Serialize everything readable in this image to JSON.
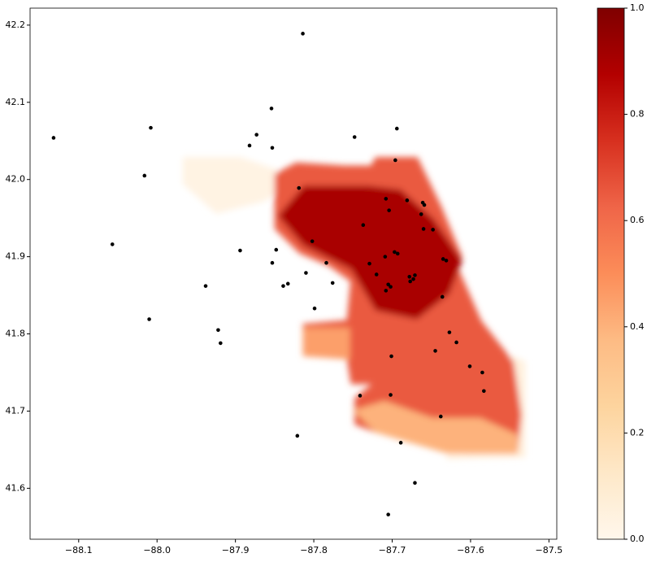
{
  "chart_data": {
    "type": "scatter",
    "xlim": [
      -88.162,
      -87.49
    ],
    "ylim": [
      41.534,
      42.222
    ],
    "xticks": [
      {
        "value": -88.1,
        "label": "−88.1"
      },
      {
        "value": -88.0,
        "label": "−88.0"
      },
      {
        "value": -87.9,
        "label": "−87.9"
      },
      {
        "value": -87.8,
        "label": "−87.8"
      },
      {
        "value": -87.7,
        "label": "−87.7"
      },
      {
        "value": -87.6,
        "label": "−87.6"
      },
      {
        "value": -87.5,
        "label": "−87.5"
      }
    ],
    "yticks": [
      41.6,
      41.7,
      41.8,
      41.9,
      {
        "value": 42.0,
        "label": "42.0"
      },
      42.1,
      42.2
    ],
    "colormap": [
      "#fff7ec",
      "#fee8c8",
      "#fdd49e",
      "#fdbb84",
      "#fc8d59",
      "#ef6548",
      "#d7301f",
      "#b30000",
      "#7f0000"
    ],
    "clim": [
      0,
      1
    ],
    "cticks": [
      {
        "value": 0,
        "label": "0.0"
      },
      0.2,
      0.4,
      0.6,
      0.8,
      {
        "value": 1,
        "label": "1.0"
      }
    ],
    "regions": [
      {
        "value": 0.03,
        "x": [
          -87.965,
          -87.894,
          -87.848,
          -87.848,
          -87.863,
          -87.924,
          -87.965
        ],
        "y": [
          42.027,
          42.027,
          42.011,
          41.985,
          41.974,
          41.958,
          41.995
        ]
      },
      {
        "value": 0.05,
        "x": [
          -87.598,
          -87.532,
          -87.532,
          -87.629,
          -87.567
        ],
        "y": [
          41.789,
          41.763,
          41.642,
          41.64,
          41.737
        ]
      },
      {
        "value": 0.65,
        "x": [
          -87.848,
          -87.822,
          -87.761,
          -87.726,
          -87.72,
          -87.669,
          -87.639,
          -87.613,
          -87.618,
          -87.588,
          -87.547,
          -87.537,
          -87.542,
          -87.608,
          -87.659,
          -87.69,
          -87.72,
          -87.746,
          -87.746,
          -87.72,
          -87.751,
          -87.756,
          -87.761,
          -87.812,
          -87.812,
          -87.756,
          -87.751,
          -87.78,
          -87.817,
          -87.848
        ],
        "y": [
          42.006,
          42.02,
          42.016,
          42.016,
          42.027,
          42.027,
          41.964,
          41.9,
          41.885,
          41.816,
          41.763,
          41.695,
          41.647,
          41.647,
          41.658,
          41.668,
          41.674,
          41.684,
          41.716,
          41.737,
          41.737,
          41.769,
          41.8,
          41.8,
          41.811,
          41.816,
          41.869,
          41.89,
          41.906,
          41.937
        ]
      },
      {
        "value": 0.45,
        "x": [
          -87.812,
          -87.756,
          -87.756,
          -87.812
        ],
        "y": [
          41.806,
          41.806,
          41.769,
          41.773
        ]
      },
      {
        "value": 0.4,
        "x": [
          -87.746,
          -87.71,
          -87.649,
          -87.588,
          -87.542,
          -87.542,
          -87.629,
          -87.72
        ],
        "y": [
          41.7,
          41.711,
          41.689,
          41.689,
          41.668,
          41.647,
          41.647,
          41.674
        ]
      },
      {
        "value": 0.9,
        "x": [
          -87.812,
          -87.731,
          -87.69,
          -87.649,
          -87.613,
          -87.629,
          -87.669,
          -87.72,
          -87.751,
          -87.812,
          -87.843
        ],
        "y": [
          41.99,
          41.99,
          41.985,
          41.948,
          41.895,
          41.853,
          41.821,
          41.832,
          41.885,
          41.916,
          41.953
        ]
      }
    ],
    "series": [
      {
        "color": "#000000",
        "x": [
          -88.132,
          -88.008,
          -88.016,
          -88.057,
          -87.814,
          -87.854,
          -87.873,
          -87.882,
          -87.853,
          -87.748,
          -87.694,
          -87.696,
          -87.819,
          -87.708,
          -87.681,
          -87.704,
          -87.661,
          -87.659,
          -87.663,
          -87.737,
          -87.66,
          -87.648,
          -87.802,
          -87.894,
          -87.848,
          -87.697,
          -87.693,
          -87.709,
          -87.635,
          -87.631,
          -87.784,
          -87.853,
          -87.729,
          -87.938,
          -87.81,
          -87.72,
          -87.678,
          -87.673,
          -87.677,
          -87.671,
          -87.705,
          -87.702,
          -87.708,
          -87.839,
          -87.833,
          -87.776,
          -87.799,
          -87.636,
          -88.01,
          -87.922,
          -87.919,
          -87.627,
          -87.618,
          -87.645,
          -87.701,
          -87.601,
          -87.585,
          -87.583,
          -87.741,
          -87.702,
          -87.638,
          -87.821,
          -87.689,
          -87.671,
          -87.705
        ],
        "y": [
          42.054,
          42.067,
          42.005,
          41.916,
          42.189,
          42.092,
          42.058,
          42.044,
          42.041,
          42.055,
          42.066,
          42.025,
          41.989,
          41.975,
          41.973,
          41.96,
          41.97,
          41.967,
          41.955,
          41.941,
          41.936,
          41.935,
          41.92,
          41.908,
          41.909,
          41.906,
          41.904,
          41.9,
          41.897,
          41.895,
          41.892,
          41.892,
          41.891,
          41.862,
          41.879,
          41.877,
          41.874,
          41.871,
          41.868,
          41.876,
          41.864,
          41.861,
          41.856,
          41.862,
          41.865,
          41.866,
          41.833,
          41.848,
          41.819,
          41.805,
          41.788,
          41.802,
          41.789,
          41.778,
          41.771,
          41.758,
          41.75,
          41.726,
          41.72,
          41.721,
          41.693,
          41.668,
          41.659,
          41.607,
          41.566
        ]
      }
    ]
  }
}
